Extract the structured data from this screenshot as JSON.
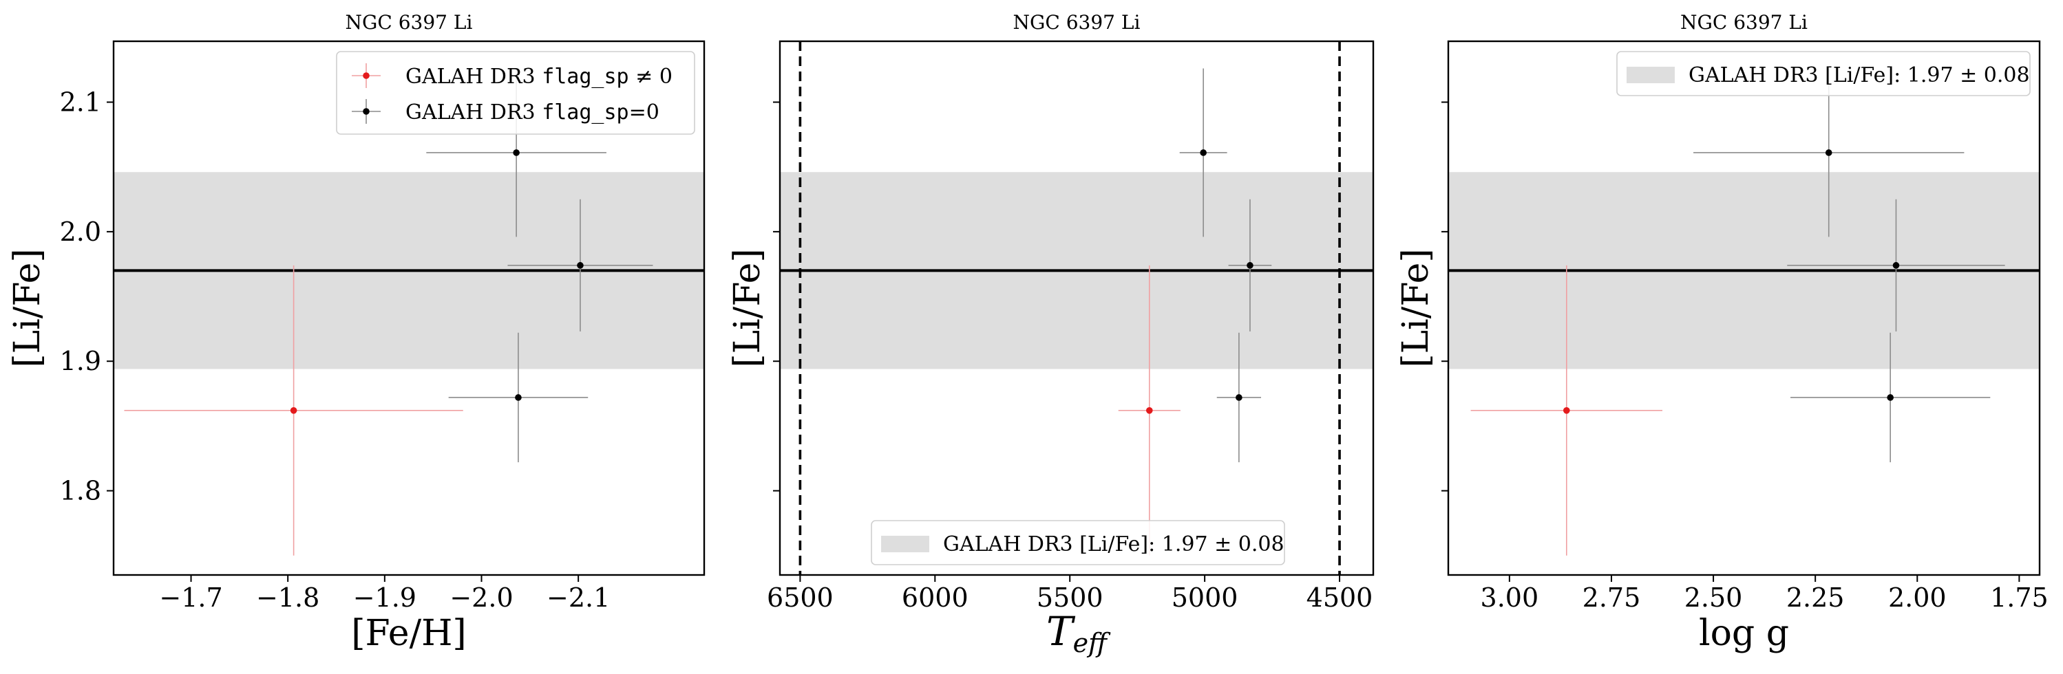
{
  "figure": {
    "background": "#ffffff"
  },
  "colors": {
    "flagged": "#e41a1c",
    "unflagged": "#000000",
    "band": "#dedede",
    "axes": "#000000"
  },
  "chart_data": [
    {
      "type": "scatter",
      "title": "NGC 6397 Li",
      "xlabel": "[Fe/H]",
      "ylabel": "[Li/Fe]",
      "xlim": [
        -1.62,
        -2.23
      ],
      "ylim": [
        1.735,
        2.147
      ],
      "xticks": [
        -1.7,
        -1.8,
        -1.9,
        -2.0,
        -2.1
      ],
      "xtick_labels": [
        "−1.7",
        "−1.8",
        "−1.9",
        "−2.0",
        "−2.1"
      ],
      "yticks": [
        1.8,
        1.9,
        2.0,
        2.1
      ],
      "ytick_labels": [
        "1.8",
        "1.9",
        "2.0",
        "2.1"
      ],
      "reference": {
        "value": 1.97,
        "err": 0.076
      },
      "series": [
        {
          "name_text": "GALAH DR3 ",
          "name_code": "flag_sp",
          "name_tail": " ≠ 0",
          "color": "#e41a1c",
          "points": [
            {
              "x": -1.806,
              "y": 1.862,
              "xerr": 0.175,
              "yerr": 0.112
            }
          ]
        },
        {
          "name_text": "GALAH DR3 ",
          "name_code": "flag_sp",
          "name_tail": "=0",
          "color": "#000000",
          "points": [
            {
              "x": -2.036,
              "y": 2.061,
              "xerr": 0.093,
              "yerr": 0.065
            },
            {
              "x": -2.102,
              "y": 1.974,
              "xerr": 0.075,
              "yerr": 0.051
            },
            {
              "x": -2.038,
              "y": 1.872,
              "xerr": 0.072,
              "yerr": 0.05
            }
          ]
        }
      ],
      "legend": {
        "position": "upper-right",
        "kind": "series"
      }
    },
    {
      "type": "scatter",
      "title": "NGC 6397 Li",
      "xlabel_main": "T",
      "xlabel_sub": "eff",
      "ylabel": "[Li/Fe]",
      "xlim": [
        6575,
        4375
      ],
      "ylim": [
        1.735,
        2.147
      ],
      "xticks": [
        6500,
        6000,
        5500,
        5000,
        4500
      ],
      "xtick_labels": [
        "6500",
        "6000",
        "5500",
        "5000",
        "4500"
      ],
      "yticks": [
        1.8,
        1.9,
        2.0,
        2.1
      ],
      "ytick_labels": [],
      "vlines": [
        6500,
        4500
      ],
      "reference": {
        "value": 1.97,
        "err": 0.076
      },
      "series": [
        {
          "color": "#e41a1c",
          "points": [
            {
              "x": 5205,
              "y": 1.862,
              "xerr": 115,
              "yerr": 0.112
            }
          ]
        },
        {
          "color": "#000000",
          "points": [
            {
              "x": 5005,
              "y": 2.061,
              "xerr": 88,
              "yerr": 0.065
            },
            {
              "x": 4832,
              "y": 1.974,
              "xerr": 80,
              "yerr": 0.051
            },
            {
              "x": 4873,
              "y": 1.872,
              "xerr": 82,
              "yerr": 0.05
            }
          ]
        }
      ],
      "legend": {
        "position": "lower-center",
        "kind": "band",
        "text": "GALAH DR3 [Li/Fe]: 1.97 ± 0.08"
      }
    },
    {
      "type": "scatter",
      "title": "NGC 6397 Li",
      "xlabel": "log g",
      "ylabel": "[Li/Fe]",
      "xlim": [
        3.15,
        1.7
      ],
      "ylim": [
        1.735,
        2.147
      ],
      "xticks": [
        3.0,
        2.75,
        2.5,
        2.25,
        2.0,
        1.75
      ],
      "xtick_labels": [
        "3.00",
        "2.75",
        "2.50",
        "2.25",
        "2.00",
        "1.75"
      ],
      "yticks": [
        1.8,
        1.9,
        2.0,
        2.1
      ],
      "ytick_labels": [],
      "reference": {
        "value": 1.97,
        "err": 0.076
      },
      "series": [
        {
          "color": "#e41a1c",
          "points": [
            {
              "x": 2.86,
              "y": 1.862,
              "xerr": 0.235,
              "yerr": 0.112
            }
          ]
        },
        {
          "color": "#000000",
          "points": [
            {
              "x": 2.217,
              "y": 2.061,
              "xerr": 0.332,
              "yerr": 0.065
            },
            {
              "x": 2.052,
              "y": 1.974,
              "xerr": 0.267,
              "yerr": 0.051
            },
            {
              "x": 2.066,
              "y": 1.872,
              "xerr": 0.245,
              "yerr": 0.05
            }
          ]
        }
      ],
      "legend": {
        "position": "upper-right",
        "kind": "band",
        "text": "GALAH DR3 [Li/Fe]: 1.97 ± 0.08"
      }
    }
  ]
}
